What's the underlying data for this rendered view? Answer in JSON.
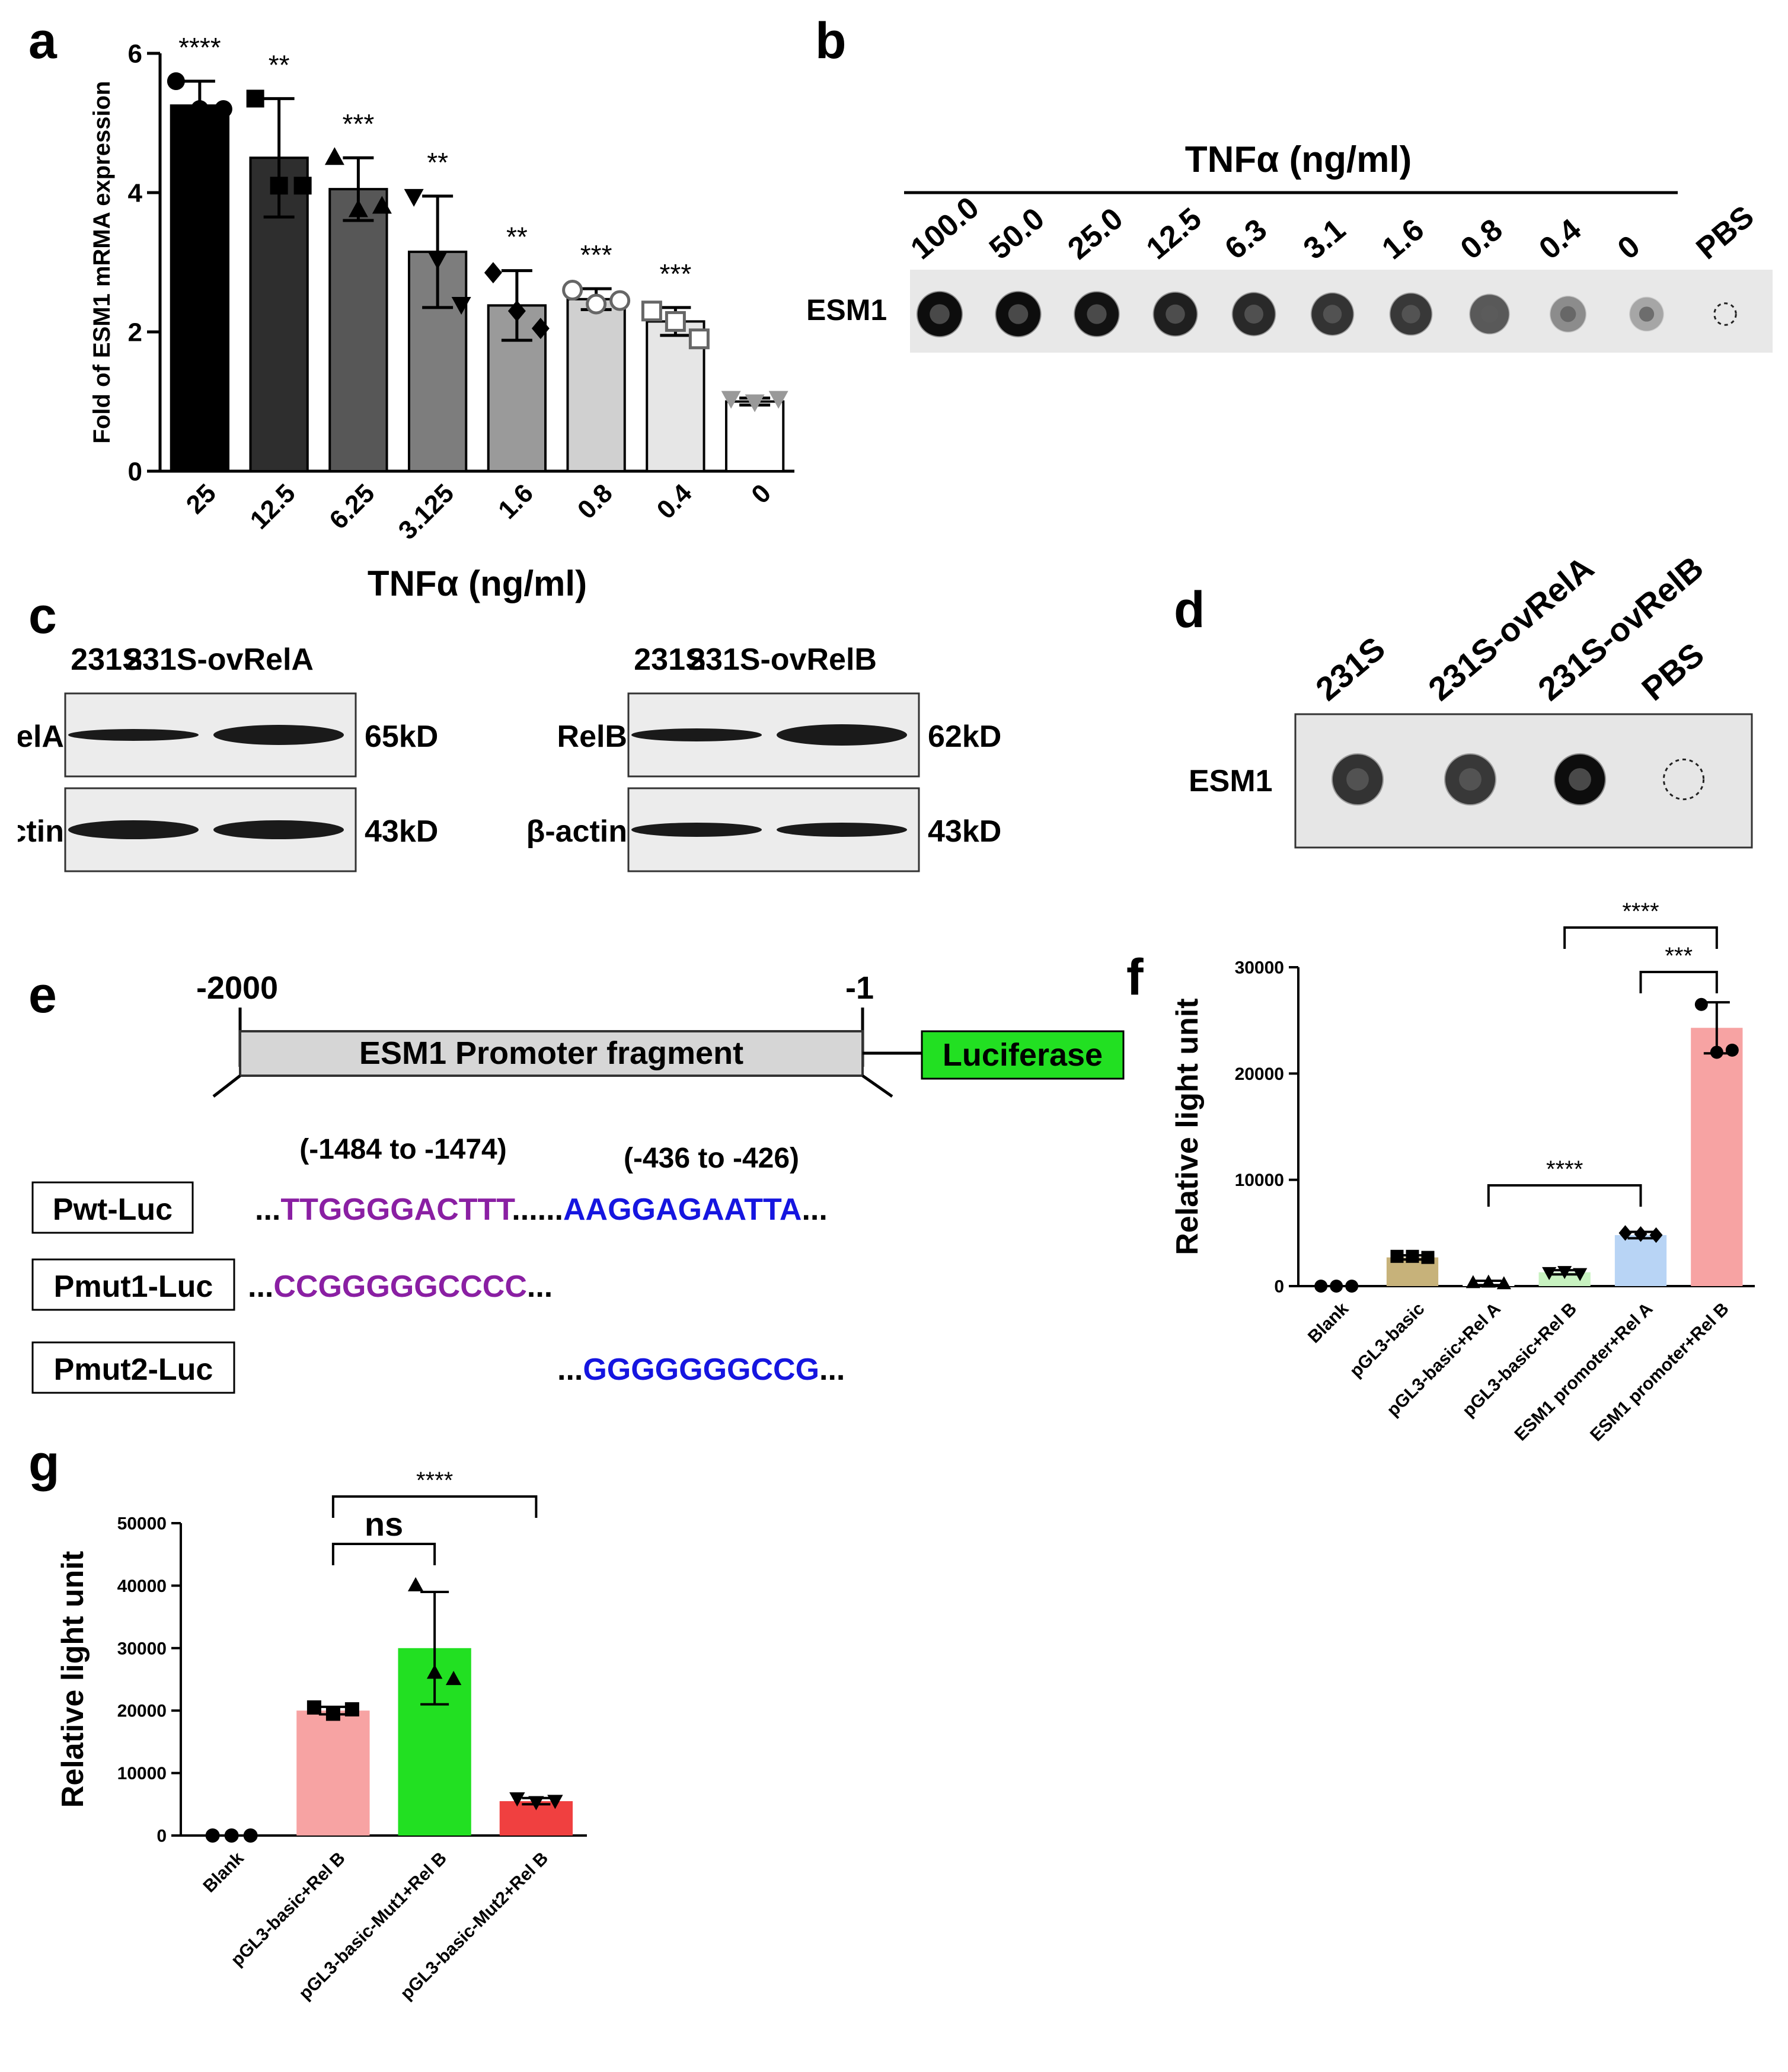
{
  "panels": {
    "a": {
      "letter": "a"
    },
    "b": {
      "letter": "b",
      "header": "TNFα (ng/ml)",
      "row_label": "ESM1",
      "lanes": [
        "100.0",
        "50.0",
        "25.0",
        "12.5",
        "6.3",
        "3.1",
        "1.6",
        "0.8",
        "0.4",
        "0",
        "PBS"
      ],
      "intensity": [
        0.95,
        0.95,
        0.93,
        0.88,
        0.84,
        0.8,
        0.78,
        0.65,
        0.45,
        0.35,
        0
      ]
    },
    "c": {
      "letter": "c",
      "left": {
        "columns": [
          "231S",
          "231S-ovRelA"
        ],
        "rows": [
          "RelA",
          "β-actin"
        ],
        "sizes": [
          "65kD",
          "43kD"
        ]
      },
      "right": {
        "columns": [
          "231S",
          "231S-ovRelB"
        ],
        "rows": [
          "RelB",
          "β-actin"
        ],
        "sizes": [
          "62kD",
          "43kD"
        ]
      }
    },
    "d": {
      "letter": "d",
      "lanes": [
        "231S",
        "231S-ovRelA",
        "231S-ovRelB",
        "PBS"
      ],
      "row_label": "ESM1",
      "intensity": [
        0.8,
        0.78,
        0.95,
        0
      ]
    },
    "e": {
      "letter": "e",
      "pos_start": "-2000",
      "pos_end": "-1",
      "promoter_label": "ESM1 Promoter fragment",
      "reporter_label": "Luciferase",
      "site1_range": "(-1484 to -1474)",
      "site2_range": "(-436 to -426)",
      "constructs": [
        {
          "name": "Pwt-Luc",
          "prefix": "...",
          "seq1": "TTGGGGACTTT",
          "mid": "......",
          "seq2": "AAGGAGAATTA",
          "suffix": "..."
        },
        {
          "name": "Pmut1-Luc",
          "prefix": "...",
          "seq1": "CCGGGGGCCCC",
          "suffix": "..."
        },
        {
          "name": "Pmut2-Luc",
          "prefix": "...",
          "seq2": "GGGGGGGCCG",
          "suffix": "..."
        }
      ],
      "colors": {
        "site1": "#8a1fa3",
        "site2": "#1515e0",
        "luciferase": "#22e022"
      }
    },
    "f": {
      "letter": "f"
    },
    "g": {
      "letter": "g"
    }
  },
  "chart_data": [
    {
      "id": "a",
      "type": "bar",
      "title": "",
      "xlabel": "TNFα (ng/ml)",
      "ylabel": "Fold of ESM1 mRMA expression",
      "ylim": [
        0,
        6
      ],
      "yticks": [
        0,
        2,
        4,
        6
      ],
      "categories": [
        "25",
        "12.5",
        "6.25",
        "3.125",
        "1.6",
        "0.8",
        "0.4",
        "0"
      ],
      "values": [
        5.25,
        4.5,
        4.05,
        3.15,
        2.38,
        2.47,
        2.15,
        1.0
      ],
      "errors": [
        0.35,
        0.85,
        0.45,
        0.8,
        0.5,
        0.15,
        0.2,
        0.05
      ],
      "significance": [
        "****",
        "**",
        "***",
        "**",
        "**",
        "***",
        "***",
        ""
      ],
      "colors": [
        "#000000",
        "#2e2e2e",
        "#575757",
        "#7d7d7d",
        "#9a9a9a",
        "#d0d0d0",
        "#e6e6e6",
        "#ffffff"
      ],
      "markers": [
        "circle",
        "square",
        "triangle",
        "triangle-down",
        "diamond",
        "circle-open",
        "square-open",
        "triangle-down"
      ],
      "points": [
        [
          5.6,
          5.2,
          5.2
        ],
        [
          5.35,
          4.1,
          4.1
        ],
        [
          4.5,
          3.75,
          3.8
        ],
        [
          3.95,
          3.05,
          2.4
        ],
        [
          2.85,
          2.3,
          2.05
        ],
        [
          2.6,
          2.4,
          2.45
        ],
        [
          2.3,
          2.15,
          1.9
        ],
        [
          1.05,
          1.0,
          1.05
        ]
      ]
    },
    {
      "id": "f",
      "type": "bar",
      "title": "",
      "xlabel": "",
      "ylabel": "Relative light unit",
      "ylim": [
        0,
        30000
      ],
      "yticks": [
        0,
        10000,
        20000,
        30000
      ],
      "categories": [
        "Blank",
        "pGL3-basic",
        "pGL3-basic+Rel A",
        "pGL3-basic+Rel B",
        "ESM1 promoter+Rel A",
        "ESM1 promoter+Rel B"
      ],
      "values": [
        0,
        2700,
        300,
        1300,
        4800,
        24300
      ],
      "errors": [
        0,
        200,
        200,
        200,
        300,
        2400
      ],
      "colors": [
        "#ffffff",
        "#c7b27a",
        "#ffffff",
        "#c8f2c0",
        "#b8d4f5",
        "#f7a3a3"
      ],
      "markers": [
        "circle",
        "square",
        "triangle",
        "triangle-down",
        "diamond",
        "circle"
      ],
      "points": [
        [
          0,
          0,
          0
        ],
        [
          2800,
          2800,
          2700
        ],
        [
          300,
          350,
          200
        ],
        [
          1300,
          1400,
          1200
        ],
        [
          5000,
          4900,
          4800
        ],
        [
          26500,
          22000,
          22200
        ]
      ],
      "comparisons": [
        {
          "from": 2,
          "to": 4,
          "label": "****"
        },
        {
          "from": 4,
          "to": 5,
          "label": "***"
        },
        {
          "from": 3,
          "to": 5,
          "label": "****"
        }
      ]
    },
    {
      "id": "g",
      "type": "bar",
      "title": "",
      "xlabel": "",
      "ylabel": "Relative light unit",
      "ylim": [
        0,
        50000
      ],
      "yticks": [
        0,
        10000,
        20000,
        30000,
        40000,
        50000
      ],
      "categories": [
        "Blank",
        "pGL3-basic+Rel B",
        "pGL3-basic-Mut1+Rel B",
        "pGL3-basic-Mut2+Rel B"
      ],
      "values": [
        0,
        20000,
        30000,
        5500
      ],
      "errors": [
        0,
        600,
        9000,
        500
      ],
      "colors": [
        "#ffffff",
        "#f7a3a3",
        "#22e022",
        "#f04040"
      ],
      "markers": [
        "circle",
        "square",
        "triangle",
        "triangle-down"
      ],
      "points": [
        [
          0,
          0,
          0
        ],
        [
          20500,
          19500,
          20200
        ],
        [
          40000,
          26000,
          25000
        ],
        [
          6000,
          5400,
          5600
        ]
      ],
      "comparisons": [
        {
          "from": 1,
          "to": 2,
          "label": "ns"
        },
        {
          "from": 1,
          "to": 3,
          "label": "****"
        }
      ]
    }
  ]
}
